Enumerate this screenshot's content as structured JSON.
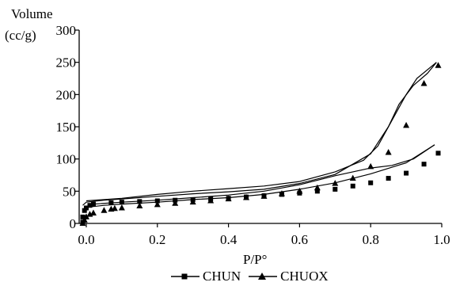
{
  "chart_data": {
    "type": "scatter",
    "ylabel_line1": "Volume",
    "ylabel_line2": "(cc/g)",
    "xlabel": "P/P°",
    "xlim": [
      -0.02,
      1.0
    ],
    "ylim": [
      0,
      300
    ],
    "x_ticks": [
      "0.0",
      "0.2",
      "0.4",
      "0.6",
      "0.8",
      "1.0"
    ],
    "y_ticks": [
      "0",
      "50",
      "100",
      "150",
      "200",
      "250",
      "300"
    ],
    "legend_position": "bottom",
    "series": [
      {
        "name": "CHUN",
        "marker": "square",
        "points": [
          {
            "x": -0.01,
            "y": 2
          },
          {
            "x": -0.01,
            "y": 10
          },
          {
            "x": -0.005,
            "y": 20
          },
          {
            "x": 0.0,
            "y": 24
          },
          {
            "x": 0.01,
            "y": 28
          },
          {
            "x": 0.02,
            "y": 30
          },
          {
            "x": 0.07,
            "y": 32
          },
          {
            "x": 0.1,
            "y": 33
          },
          {
            "x": 0.15,
            "y": 34
          },
          {
            "x": 0.2,
            "y": 35
          },
          {
            "x": 0.25,
            "y": 36
          },
          {
            "x": 0.3,
            "y": 37
          },
          {
            "x": 0.35,
            "y": 38
          },
          {
            "x": 0.4,
            "y": 39
          },
          {
            "x": 0.45,
            "y": 41
          },
          {
            "x": 0.5,
            "y": 43
          },
          {
            "x": 0.55,
            "y": 45
          },
          {
            "x": 0.6,
            "y": 47
          },
          {
            "x": 0.65,
            "y": 50
          },
          {
            "x": 0.7,
            "y": 53
          },
          {
            "x": 0.75,
            "y": 58
          },
          {
            "x": 0.8,
            "y": 63
          },
          {
            "x": 0.85,
            "y": 70
          },
          {
            "x": 0.9,
            "y": 78
          },
          {
            "x": 0.95,
            "y": 92
          },
          {
            "x": 0.99,
            "y": 109
          }
        ],
        "curve_adsorption": [
          {
            "x": -0.01,
            "y": 20
          },
          {
            "x": 0.0,
            "y": 25
          },
          {
            "x": 0.05,
            "y": 28
          },
          {
            "x": 0.1,
            "y": 30
          },
          {
            "x": 0.2,
            "y": 33
          },
          {
            "x": 0.3,
            "y": 37
          },
          {
            "x": 0.4,
            "y": 40
          },
          {
            "x": 0.5,
            "y": 45
          },
          {
            "x": 0.6,
            "y": 53
          },
          {
            "x": 0.7,
            "y": 63
          },
          {
            "x": 0.8,
            "y": 77
          },
          {
            "x": 0.9,
            "y": 94
          },
          {
            "x": 0.98,
            "y": 122
          }
        ],
        "curve_desorption": [
          {
            "x": 0.98,
            "y": 122
          },
          {
            "x": 0.92,
            "y": 100
          },
          {
            "x": 0.86,
            "y": 90
          },
          {
            "x": 0.8,
            "y": 86
          },
          {
            "x": 0.7,
            "y": 74
          },
          {
            "x": 0.6,
            "y": 60
          },
          {
            "x": 0.5,
            "y": 50
          },
          {
            "x": 0.4,
            "y": 44
          },
          {
            "x": 0.3,
            "y": 40
          },
          {
            "x": 0.2,
            "y": 36
          },
          {
            "x": 0.1,
            "y": 33
          },
          {
            "x": 0.02,
            "y": 30
          }
        ]
      },
      {
        "name": "CHUOX",
        "marker": "triangle",
        "points": [
          {
            "x": -0.01,
            "y": 0
          },
          {
            "x": -0.005,
            "y": 5
          },
          {
            "x": 0.0,
            "y": 10
          },
          {
            "x": 0.01,
            "y": 14
          },
          {
            "x": 0.02,
            "y": 16
          },
          {
            "x": 0.05,
            "y": 20
          },
          {
            "x": 0.07,
            "y": 22
          },
          {
            "x": 0.08,
            "y": 23
          },
          {
            "x": 0.1,
            "y": 24
          },
          {
            "x": 0.15,
            "y": 27
          },
          {
            "x": 0.2,
            "y": 29
          },
          {
            "x": 0.25,
            "y": 31
          },
          {
            "x": 0.3,
            "y": 33
          },
          {
            "x": 0.35,
            "y": 35
          },
          {
            "x": 0.4,
            "y": 38
          },
          {
            "x": 0.45,
            "y": 40
          },
          {
            "x": 0.5,
            "y": 42
          },
          {
            "x": 0.55,
            "y": 46
          },
          {
            "x": 0.6,
            "y": 50
          },
          {
            "x": 0.65,
            "y": 55
          },
          {
            "x": 0.7,
            "y": 62
          },
          {
            "x": 0.75,
            "y": 70
          },
          {
            "x": 0.8,
            "y": 88
          },
          {
            "x": 0.85,
            "y": 110
          },
          {
            "x": 0.9,
            "y": 152
          },
          {
            "x": 0.95,
            "y": 217
          },
          {
            "x": 0.99,
            "y": 245
          }
        ],
        "curve_adsorption": [
          {
            "x": -0.01,
            "y": 28
          },
          {
            "x": 0.0,
            "y": 33
          },
          {
            "x": 0.05,
            "y": 36
          },
          {
            "x": 0.1,
            "y": 38
          },
          {
            "x": 0.2,
            "y": 42
          },
          {
            "x": 0.3,
            "y": 46
          },
          {
            "x": 0.4,
            "y": 49
          },
          {
            "x": 0.5,
            "y": 53
          },
          {
            "x": 0.6,
            "y": 62
          },
          {
            "x": 0.7,
            "y": 76
          },
          {
            "x": 0.8,
            "y": 108
          },
          {
            "x": 0.85,
            "y": 150
          },
          {
            "x": 0.88,
            "y": 185
          },
          {
            "x": 0.92,
            "y": 214
          },
          {
            "x": 0.96,
            "y": 233
          },
          {
            "x": 0.985,
            "y": 250
          }
        ],
        "curve_desorption": [
          {
            "x": 0.985,
            "y": 250
          },
          {
            "x": 0.93,
            "y": 225
          },
          {
            "x": 0.9,
            "y": 200
          },
          {
            "x": 0.86,
            "y": 160
          },
          {
            "x": 0.82,
            "y": 120
          },
          {
            "x": 0.78,
            "y": 98
          },
          {
            "x": 0.7,
            "y": 80
          },
          {
            "x": 0.6,
            "y": 65
          },
          {
            "x": 0.5,
            "y": 58
          },
          {
            "x": 0.4,
            "y": 54
          },
          {
            "x": 0.3,
            "y": 50
          },
          {
            "x": 0.2,
            "y": 45
          },
          {
            "x": 0.1,
            "y": 39
          },
          {
            "x": 0.0,
            "y": 35
          }
        ]
      }
    ]
  }
}
